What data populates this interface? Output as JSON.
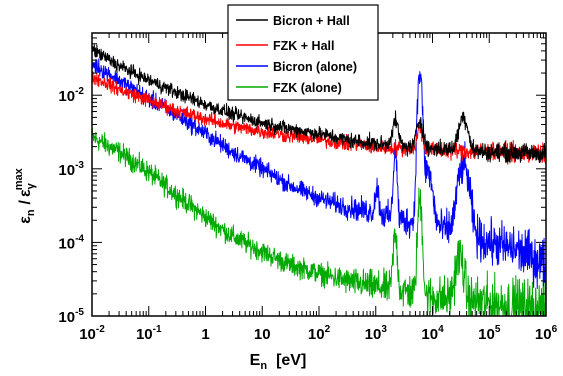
{
  "chart_data": {
    "type": "line",
    "title": "",
    "x_scale": "log",
    "y_scale": "log",
    "xlim": [
      0.01,
      1000000
    ],
    "ylim": [
      1e-05,
      0.07
    ],
    "x_tick_labels": [
      {
        "value": 0.01,
        "base": "10",
        "exp": "-2"
      },
      {
        "value": 0.1,
        "base": "10",
        "exp": "-1"
      },
      {
        "value": 1,
        "base": "1",
        "exp": ""
      },
      {
        "value": 10,
        "base": "10",
        "exp": ""
      },
      {
        "value": 100,
        "base": "10",
        "exp": "2"
      },
      {
        "value": 1000,
        "base": "10",
        "exp": "3"
      },
      {
        "value": 10000,
        "base": "10",
        "exp": "4"
      },
      {
        "value": 100000,
        "base": "10",
        "exp": "5"
      },
      {
        "value": 1000000,
        "base": "10",
        "exp": "6"
      }
    ],
    "y_tick_labels": [
      {
        "value": 1e-05,
        "base": "10",
        "exp": "-5"
      },
      {
        "value": 0.0001,
        "base": "10",
        "exp": "-4"
      },
      {
        "value": 0.001,
        "base": "10",
        "exp": "-3"
      },
      {
        "value": 0.01,
        "base": "10",
        "exp": "-2"
      }
    ],
    "xlabel": {
      "main": "E",
      "sub": "n",
      "unit": "[eV]"
    },
    "ylabel": {
      "num": "ε",
      "num_sub": "n",
      "slash": "/",
      "den": "ε",
      "den_sub": "γ",
      "den_sup": "max"
    },
    "legend_position": "top-center",
    "series": [
      {
        "name": "Bicron + Hall",
        "color": "#000000",
        "noise": 0.08,
        "points": [
          [
            0.01,
            0.042
          ],
          [
            0.03,
            0.025
          ],
          [
            0.1,
            0.016
          ],
          [
            0.3,
            0.011
          ],
          [
            1,
            0.0075
          ],
          [
            3,
            0.0055
          ],
          [
            10,
            0.0042
          ],
          [
            30,
            0.0035
          ],
          [
            100,
            0.003
          ],
          [
            300,
            0.0025
          ],
          [
            1000,
            0.0022
          ],
          [
            3000,
            0.002
          ],
          [
            10000,
            0.0019
          ],
          [
            100000,
            0.0017
          ],
          [
            1000000,
            0.0016
          ]
        ],
        "peaks": [
          [
            2200,
            0.0023,
            0.05
          ],
          [
            6000,
            0.0026,
            0.05
          ],
          [
            35000,
            0.0033,
            0.07
          ]
        ]
      },
      {
        "name": "FZK + Hall",
        "color": "#ff0000",
        "noise": 0.08,
        "points": [
          [
            0.01,
            0.018
          ],
          [
            0.03,
            0.012
          ],
          [
            0.1,
            0.0085
          ],
          [
            0.3,
            0.0062
          ],
          [
            1,
            0.0048
          ],
          [
            3,
            0.0038
          ],
          [
            10,
            0.0032
          ],
          [
            30,
            0.0028
          ],
          [
            100,
            0.0025
          ],
          [
            300,
            0.0022
          ],
          [
            1000,
            0.002
          ],
          [
            3000,
            0.0019
          ],
          [
            10000,
            0.0018
          ],
          [
            100000,
            0.0017
          ],
          [
            1000000,
            0.0016
          ]
        ],
        "peaks": [
          [
            6000,
            0.0018,
            0.04
          ]
        ]
      },
      {
        "name": "Bicron (alone)",
        "color": "#0000ff",
        "noise": 0.1,
        "points": [
          [
            0.01,
            0.027
          ],
          [
            0.03,
            0.016
          ],
          [
            0.1,
            0.009
          ],
          [
            0.3,
            0.0055
          ],
          [
            1,
            0.003
          ],
          [
            3,
            0.0017
          ],
          [
            10,
            0.001
          ],
          [
            30,
            0.0006
          ],
          [
            100,
            0.0004
          ],
          [
            300,
            0.0003
          ],
          [
            1000,
            0.00025
          ],
          [
            3000,
            0.0002
          ],
          [
            10000,
            0.00017
          ],
          [
            30000,
            0.00013
          ],
          [
            100000,
            0.0001
          ],
          [
            300000,
            8e-05
          ],
          [
            1000000,
            5e-05
          ]
        ],
        "peaks": [
          [
            1050,
            0.0003,
            0.03
          ],
          [
            2200,
            0.0015,
            0.025
          ],
          [
            6000,
            0.02,
            0.03
          ],
          [
            8000,
            0.0008,
            0.07
          ],
          [
            35000,
            0.001,
            0.08
          ]
        ]
      },
      {
        "name": "FZK (alone)",
        "color": "#00aa00",
        "noise": 0.12,
        "points": [
          [
            0.01,
            0.0027
          ],
          [
            0.03,
            0.0017
          ],
          [
            0.1,
            0.0009
          ],
          [
            0.3,
            0.00045
          ],
          [
            1,
            0.00022
          ],
          [
            3,
            0.00012
          ],
          [
            10,
            7.5e-05
          ],
          [
            30,
            5e-05
          ],
          [
            100,
            3.8e-05
          ],
          [
            300,
            3e-05
          ],
          [
            1000,
            2.5e-05
          ],
          [
            3000,
            2.2e-05
          ],
          [
            10000,
            1.8e-05
          ],
          [
            100000,
            1.5e-05
          ],
          [
            1000000,
            1.2e-05
          ]
        ],
        "peaks": [
          [
            2200,
            0.0001,
            0.03
          ],
          [
            6000,
            0.00035,
            0.03
          ],
          [
            30000,
            5e-05,
            0.06
          ]
        ]
      }
    ]
  }
}
